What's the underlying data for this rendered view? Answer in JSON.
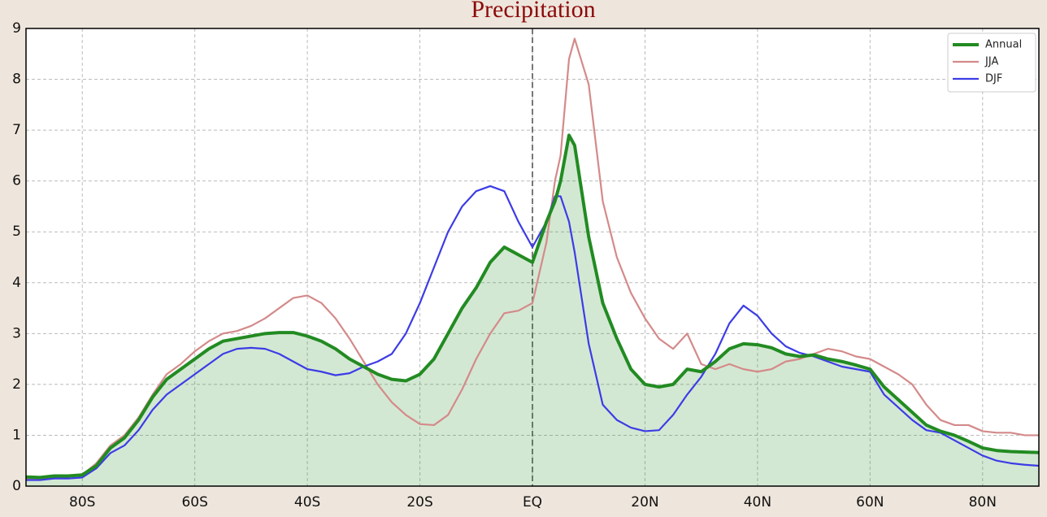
{
  "chart_data": {
    "type": "line",
    "title": "Precipitation",
    "x": [
      -90,
      -87.5,
      -85,
      -82.5,
      -80,
      -77.5,
      -75,
      -72.5,
      -70,
      -67.5,
      -65,
      -62.5,
      -60,
      -57.5,
      -55,
      -52.5,
      -50,
      -47.5,
      -45,
      -42.5,
      -40,
      -37.5,
      -35,
      -32.5,
      -30,
      -27.5,
      -25,
      -22.5,
      -20,
      -17.5,
      -15,
      -12.5,
      -10,
      -7.5,
      -5,
      -2.5,
      0,
      2.5,
      4,
      5,
      6.5,
      7.5,
      10,
      12.5,
      15,
      17.5,
      20,
      22.5,
      25,
      27.5,
      30,
      32.5,
      35,
      37.5,
      40,
      42.5,
      45,
      47.5,
      50,
      52.5,
      55,
      57.5,
      60,
      62.5,
      65,
      67.5,
      70,
      72.5,
      75,
      77.5,
      80,
      82.5,
      85,
      87.5,
      90
    ],
    "series": [
      {
        "name": "Annual",
        "color": "#228b22",
        "fill": true,
        "values": [
          0.18,
          0.17,
          0.2,
          0.2,
          0.22,
          0.4,
          0.75,
          0.95,
          1.3,
          1.75,
          2.1,
          2.3,
          2.5,
          2.7,
          2.85,
          2.9,
          2.95,
          3.0,
          3.02,
          3.02,
          2.95,
          2.85,
          2.7,
          2.5,
          2.35,
          2.2,
          2.1,
          2.07,
          2.2,
          2.5,
          3.0,
          3.5,
          3.9,
          4.4,
          4.7,
          4.55,
          4.4,
          5.2,
          5.6,
          6.0,
          6.9,
          6.7,
          4.9,
          3.6,
          2.9,
          2.3,
          2.0,
          1.95,
          2.0,
          2.3,
          2.25,
          2.45,
          2.7,
          2.8,
          2.78,
          2.72,
          2.6,
          2.55,
          2.58,
          2.5,
          2.45,
          2.38,
          2.3,
          1.95,
          1.7,
          1.45,
          1.2,
          1.08,
          1.0,
          0.88,
          0.75,
          0.7,
          0.68,
          0.67,
          0.66
        ]
      },
      {
        "name": "JJA",
        "color": "#d48a8a",
        "values": [
          0.15,
          0.13,
          0.17,
          0.2,
          0.22,
          0.45,
          0.8,
          1.0,
          1.35,
          1.8,
          2.2,
          2.4,
          2.65,
          2.85,
          3.0,
          3.05,
          3.15,
          3.3,
          3.5,
          3.7,
          3.75,
          3.6,
          3.3,
          2.9,
          2.45,
          2.0,
          1.65,
          1.4,
          1.22,
          1.2,
          1.4,
          1.9,
          2.5,
          3.0,
          3.4,
          3.45,
          3.6,
          4.8,
          6.0,
          6.5,
          8.4,
          8.8,
          7.9,
          5.6,
          4.5,
          3.8,
          3.3,
          2.9,
          2.7,
          3.0,
          2.4,
          2.3,
          2.4,
          2.3,
          2.25,
          2.3,
          2.45,
          2.5,
          2.6,
          2.7,
          2.65,
          2.55,
          2.5,
          2.35,
          2.2,
          2.0,
          1.6,
          1.3,
          1.2,
          1.2,
          1.08,
          1.05,
          1.05,
          1.0,
          1.0
        ]
      },
      {
        "name": "DJF",
        "color": "#3c3ce6",
        "values": [
          0.12,
          0.12,
          0.15,
          0.15,
          0.17,
          0.35,
          0.65,
          0.8,
          1.1,
          1.5,
          1.8,
          2.0,
          2.2,
          2.4,
          2.6,
          2.7,
          2.72,
          2.7,
          2.6,
          2.45,
          2.3,
          2.25,
          2.18,
          2.22,
          2.35,
          2.45,
          2.6,
          3.0,
          3.6,
          4.3,
          5.0,
          5.5,
          5.8,
          5.9,
          5.8,
          5.2,
          4.7,
          5.2,
          5.7,
          5.7,
          5.2,
          4.6,
          2.8,
          1.6,
          1.3,
          1.15,
          1.08,
          1.1,
          1.4,
          1.8,
          2.15,
          2.6,
          3.2,
          3.55,
          3.35,
          3.0,
          2.75,
          2.62,
          2.55,
          2.45,
          2.35,
          2.3,
          2.25,
          1.8,
          1.55,
          1.3,
          1.1,
          1.05,
          0.9,
          0.75,
          0.6,
          0.5,
          0.45,
          0.42,
          0.4
        ]
      }
    ],
    "xlim": [
      -90,
      90
    ],
    "xticks": [
      {
        "value": -80,
        "label": "80S"
      },
      {
        "value": -60,
        "label": "60S"
      },
      {
        "value": -40,
        "label": "40S"
      },
      {
        "value": -20,
        "label": "20S"
      },
      {
        "value": 0,
        "label": "EQ"
      },
      {
        "value": 20,
        "label": "20N"
      },
      {
        "value": 40,
        "label": "40N"
      },
      {
        "value": 60,
        "label": "60N"
      },
      {
        "value": 80,
        "label": "80N"
      }
    ],
    "ylim": [
      0,
      9
    ],
    "yticks": [
      0,
      1,
      2,
      3,
      4,
      5,
      6,
      7,
      8,
      9
    ],
    "grid": true,
    "legend": "upper right"
  }
}
